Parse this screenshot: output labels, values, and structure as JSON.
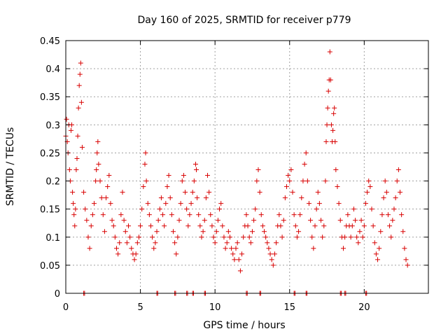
{
  "chart_data": {
    "type": "scatter",
    "title": "Day 160 of 2025, SRMTID for receiver p779",
    "xlabel": "GPS time / hours",
    "ylabel": "SRMTID / TECUs",
    "xlim": [
      0,
      24.3
    ],
    "ylim": [
      0,
      0.45
    ],
    "xticks": [
      0,
      5,
      10,
      15,
      20
    ],
    "xtick_labels": [
      "0",
      "5",
      "10",
      "15",
      "20"
    ],
    "yticks": [
      0,
      0.05,
      0.1,
      0.15,
      0.2,
      0.25,
      0.3,
      0.35,
      0.4,
      0.45
    ],
    "ytick_labels": [
      "0",
      "0.05",
      "0.1",
      "0.15",
      "0.2",
      "0.25",
      "0.3",
      "0.35",
      "0.4",
      "0.45"
    ],
    "grid": true,
    "marker": "+",
    "series_color": "#d80000",
    "series": [
      {
        "name": "SRMTID",
        "points": [
          [
            0.0,
            0.28
          ],
          [
            0.05,
            0.31
          ],
          [
            0.1,
            0.27
          ],
          [
            0.15,
            0.25
          ],
          [
            0.2,
            0.3
          ],
          [
            0.25,
            0.22
          ],
          [
            0.3,
            0.2
          ],
          [
            0.35,
            0.29
          ],
          [
            0.4,
            0.3
          ],
          [
            0.45,
            0.18
          ],
          [
            0.5,
            0.16
          ],
          [
            0.55,
            0.14
          ],
          [
            0.6,
            0.12
          ],
          [
            0.65,
            0.15
          ],
          [
            0.7,
            0.22
          ],
          [
            0.75,
            0.24
          ],
          [
            0.8,
            0.28
          ],
          [
            0.85,
            0.33
          ],
          [
            0.9,
            0.37
          ],
          [
            0.95,
            0.39
          ],
          [
            1.0,
            0.41
          ],
          [
            1.05,
            0.34
          ],
          [
            1.1,
            0.26
          ],
          [
            1.2,
            0.18
          ],
          [
            1.3,
            0.15
          ],
          [
            1.4,
            0.13
          ],
          [
            1.5,
            0.1
          ],
          [
            1.6,
            0.08
          ],
          [
            1.7,
            0.12
          ],
          [
            1.8,
            0.14
          ],
          [
            1.9,
            0.16
          ],
          [
            2.0,
            0.2
          ],
          [
            2.05,
            0.22
          ],
          [
            2.1,
            0.25
          ],
          [
            2.15,
            0.27
          ],
          [
            2.2,
            0.23
          ],
          [
            2.3,
            0.2
          ],
          [
            2.4,
            0.17
          ],
          [
            2.5,
            0.14
          ],
          [
            2.6,
            0.11
          ],
          [
            2.7,
            0.17
          ],
          [
            2.8,
            0.19
          ],
          [
            2.9,
            0.21
          ],
          [
            3.0,
            0.16
          ],
          [
            3.1,
            0.13
          ],
          [
            3.2,
            0.12
          ],
          [
            3.3,
            0.1
          ],
          [
            3.4,
            0.08
          ],
          [
            3.5,
            0.07
          ],
          [
            3.6,
            0.09
          ],
          [
            3.7,
            0.14
          ],
          [
            3.8,
            0.18
          ],
          [
            3.9,
            0.13
          ],
          [
            4.0,
            0.11
          ],
          [
            4.1,
            0.09
          ],
          [
            4.2,
            0.12
          ],
          [
            4.3,
            0.1
          ],
          [
            4.4,
            0.08
          ],
          [
            4.5,
            0.07
          ],
          [
            4.6,
            0.06
          ],
          [
            4.7,
            0.07
          ],
          [
            4.8,
            0.09
          ],
          [
            4.9,
            0.1
          ],
          [
            5.0,
            0.12
          ],
          [
            5.1,
            0.15
          ],
          [
            5.2,
            0.19
          ],
          [
            5.3,
            0.23
          ],
          [
            5.35,
            0.25
          ],
          [
            5.4,
            0.2
          ],
          [
            5.5,
            0.16
          ],
          [
            5.6,
            0.14
          ],
          [
            5.7,
            0.12
          ],
          [
            5.8,
            0.1
          ],
          [
            5.9,
            0.08
          ],
          [
            6.0,
            0.09
          ],
          [
            6.1,
            0.11
          ],
          [
            6.2,
            0.13
          ],
          [
            6.3,
            0.15
          ],
          [
            6.4,
            0.17
          ],
          [
            6.5,
            0.14
          ],
          [
            6.6,
            0.12
          ],
          [
            6.7,
            0.16
          ],
          [
            6.8,
            0.19
          ],
          [
            6.9,
            0.21
          ],
          [
            7.0,
            0.17
          ],
          [
            7.1,
            0.14
          ],
          [
            7.2,
            0.11
          ],
          [
            7.3,
            0.09
          ],
          [
            7.4,
            0.07
          ],
          [
            7.5,
            0.1
          ],
          [
            7.6,
            0.13
          ],
          [
            7.7,
            0.16
          ],
          [
            7.8,
            0.2
          ],
          [
            7.9,
            0.21
          ],
          [
            8.0,
            0.18
          ],
          [
            8.1,
            0.15
          ],
          [
            8.2,
            0.12
          ],
          [
            8.3,
            0.14
          ],
          [
            8.4,
            0.16
          ],
          [
            8.5,
            0.18
          ],
          [
            8.6,
            0.2
          ],
          [
            8.7,
            0.23
          ],
          [
            8.75,
            0.22
          ],
          [
            8.8,
            0.17
          ],
          [
            8.9,
            0.14
          ],
          [
            9.0,
            0.12
          ],
          [
            9.1,
            0.1
          ],
          [
            9.2,
            0.11
          ],
          [
            9.3,
            0.13
          ],
          [
            9.4,
            0.17
          ],
          [
            9.5,
            0.21
          ],
          [
            9.6,
            0.18
          ],
          [
            9.7,
            0.14
          ],
          [
            9.8,
            0.12
          ],
          [
            9.9,
            0.1
          ],
          [
            10.0,
            0.09
          ],
          [
            10.1,
            0.11
          ],
          [
            10.2,
            0.13
          ],
          [
            10.3,
            0.15
          ],
          [
            10.4,
            0.16
          ],
          [
            10.5,
            0.12
          ],
          [
            10.6,
            0.1
          ],
          [
            10.7,
            0.08
          ],
          [
            10.8,
            0.09
          ],
          [
            10.9,
            0.11
          ],
          [
            11.0,
            0.1
          ],
          [
            11.1,
            0.08
          ],
          [
            11.2,
            0.07
          ],
          [
            11.3,
            0.06
          ],
          [
            11.4,
            0.08
          ],
          [
            11.5,
            0.09
          ],
          [
            11.6,
            0.06
          ],
          [
            11.7,
            0.04
          ],
          [
            11.8,
            0.07
          ],
          [
            11.9,
            0.1
          ],
          [
            12.0,
            0.12
          ],
          [
            12.1,
            0.14
          ],
          [
            12.2,
            0.12
          ],
          [
            12.3,
            0.1
          ],
          [
            12.4,
            0.09
          ],
          [
            12.5,
            0.11
          ],
          [
            12.6,
            0.13
          ],
          [
            12.7,
            0.15
          ],
          [
            12.8,
            0.2
          ],
          [
            12.9,
            0.22
          ],
          [
            13.0,
            0.18
          ],
          [
            13.1,
            0.14
          ],
          [
            13.2,
            0.12
          ],
          [
            13.3,
            0.11
          ],
          [
            13.4,
            0.1
          ],
          [
            13.5,
            0.09
          ],
          [
            13.6,
            0.08
          ],
          [
            13.7,
            0.07
          ],
          [
            13.8,
            0.06
          ],
          [
            13.9,
            0.05
          ],
          [
            14.0,
            0.07
          ],
          [
            14.1,
            0.09
          ],
          [
            14.2,
            0.12
          ],
          [
            14.3,
            0.14
          ],
          [
            14.4,
            0.12
          ],
          [
            14.5,
            0.1
          ],
          [
            14.6,
            0.13
          ],
          [
            14.7,
            0.17
          ],
          [
            14.8,
            0.19
          ],
          [
            14.9,
            0.21
          ],
          [
            15.0,
            0.2
          ],
          [
            15.1,
            0.22
          ],
          [
            15.2,
            0.18
          ],
          [
            15.3,
            0.14
          ],
          [
            15.4,
            0.12
          ],
          [
            15.5,
            0.1
          ],
          [
            15.6,
            0.11
          ],
          [
            15.7,
            0.14
          ],
          [
            15.8,
            0.17
          ],
          [
            15.9,
            0.2
          ],
          [
            16.0,
            0.23
          ],
          [
            16.1,
            0.25
          ],
          [
            16.2,
            0.2
          ],
          [
            16.3,
            0.16
          ],
          [
            16.4,
            0.13
          ],
          [
            16.5,
            0.1
          ],
          [
            16.6,
            0.08
          ],
          [
            16.7,
            0.12
          ],
          [
            16.8,
            0.15
          ],
          [
            16.9,
            0.18
          ],
          [
            17.0,
            0.16
          ],
          [
            17.1,
            0.13
          ],
          [
            17.2,
            0.1
          ],
          [
            17.3,
            0.12
          ],
          [
            17.4,
            0.2
          ],
          [
            17.45,
            0.27
          ],
          [
            17.5,
            0.3
          ],
          [
            17.55,
            0.33
          ],
          [
            17.6,
            0.36
          ],
          [
            17.65,
            0.38
          ],
          [
            17.7,
            0.43
          ],
          [
            17.75,
            0.38
          ],
          [
            17.8,
            0.3
          ],
          [
            17.85,
            0.27
          ],
          [
            17.9,
            0.29
          ],
          [
            17.95,
            0.32
          ],
          [
            18.0,
            0.33
          ],
          [
            18.05,
            0.27
          ],
          [
            18.1,
            0.22
          ],
          [
            18.2,
            0.19
          ],
          [
            18.3,
            0.16
          ],
          [
            18.4,
            0.13
          ],
          [
            18.5,
            0.1
          ],
          [
            18.6,
            0.08
          ],
          [
            18.7,
            0.1
          ],
          [
            18.8,
            0.12
          ],
          [
            18.9,
            0.14
          ],
          [
            19.0,
            0.12
          ],
          [
            19.1,
            0.1
          ],
          [
            19.2,
            0.12
          ],
          [
            19.3,
            0.15
          ],
          [
            19.4,
            0.13
          ],
          [
            19.5,
            0.1
          ],
          [
            19.6,
            0.09
          ],
          [
            19.7,
            0.11
          ],
          [
            19.8,
            0.13
          ],
          [
            19.9,
            0.1
          ],
          [
            20.0,
            0.12
          ],
          [
            20.1,
            0.16
          ],
          [
            20.2,
            0.18
          ],
          [
            20.3,
            0.2
          ],
          [
            20.4,
            0.19
          ],
          [
            20.5,
            0.15
          ],
          [
            20.6,
            0.12
          ],
          [
            20.7,
            0.09
          ],
          [
            20.8,
            0.07
          ],
          [
            20.9,
            0.06
          ],
          [
            21.0,
            0.08
          ],
          [
            21.1,
            0.11
          ],
          [
            21.2,
            0.14
          ],
          [
            21.3,
            0.17
          ],
          [
            21.4,
            0.2
          ],
          [
            21.5,
            0.18
          ],
          [
            21.6,
            0.14
          ],
          [
            21.7,
            0.12
          ],
          [
            21.8,
            0.1
          ],
          [
            21.9,
            0.13
          ],
          [
            22.0,
            0.15
          ],
          [
            22.1,
            0.17
          ],
          [
            22.2,
            0.2
          ],
          [
            22.3,
            0.22
          ],
          [
            22.4,
            0.18
          ],
          [
            22.5,
            0.14
          ],
          [
            22.6,
            0.11
          ],
          [
            22.7,
            0.08
          ],
          [
            22.8,
            0.06
          ],
          [
            22.9,
            0.05
          ]
        ]
      }
    ],
    "zero_points": [
      1.2,
      6.1,
      7.3,
      8.1,
      8.5,
      9.3,
      12.1,
      13.0,
      15.3,
      16.1,
      18.4,
      18.7,
      20.1
    ]
  }
}
